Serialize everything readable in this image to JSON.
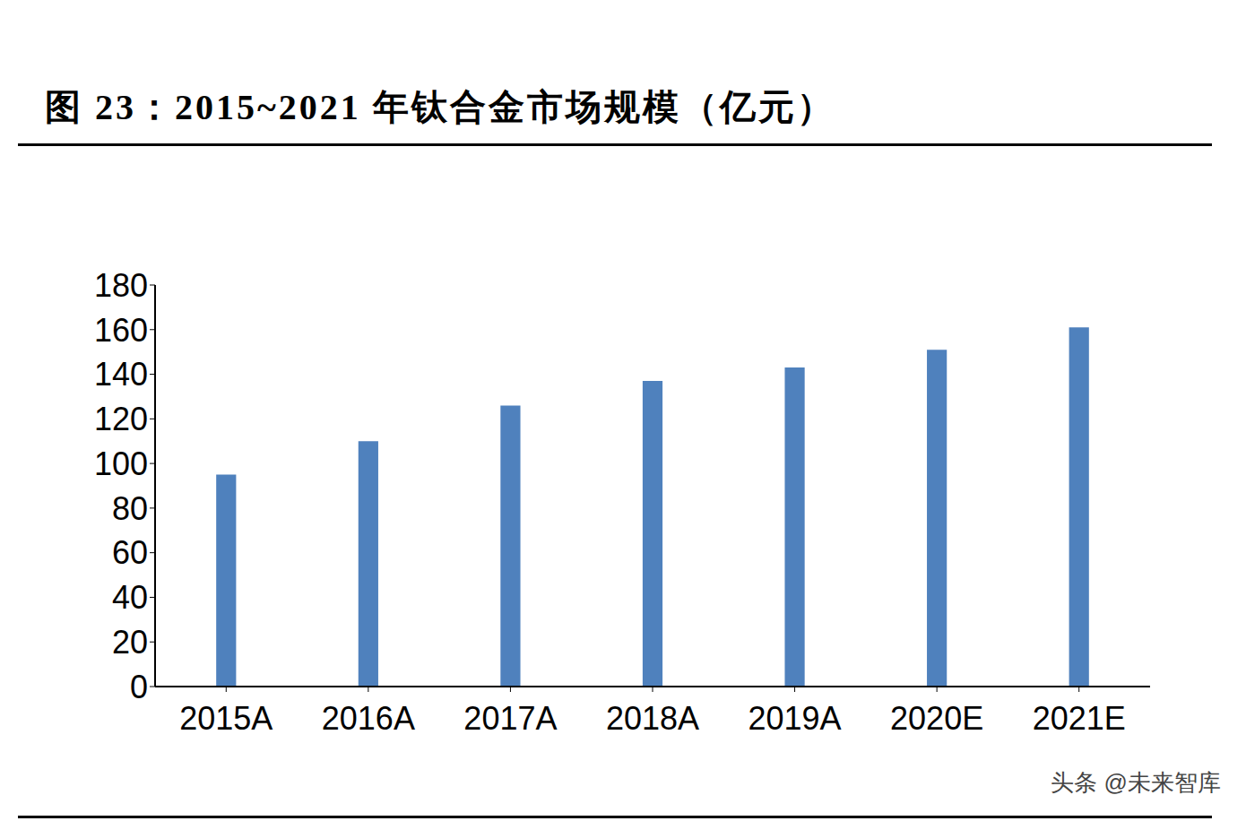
{
  "chart_data": {
    "type": "bar",
    "title": "图 23：2015~2021 年钛合金市场规模（亿元）",
    "categories": [
      "2015A",
      "2016A",
      "2017A",
      "2018A",
      "2019A",
      "2020E",
      "2021E"
    ],
    "values": [
      95,
      110,
      126,
      137,
      143,
      151,
      161
    ],
    "color": "#4f81bd",
    "ylim": [
      0,
      180
    ],
    "yticks": [
      0,
      20,
      40,
      60,
      80,
      100,
      120,
      140,
      160,
      180
    ],
    "grid": false,
    "annotations": [
      "头条 @未来智库"
    ]
  }
}
